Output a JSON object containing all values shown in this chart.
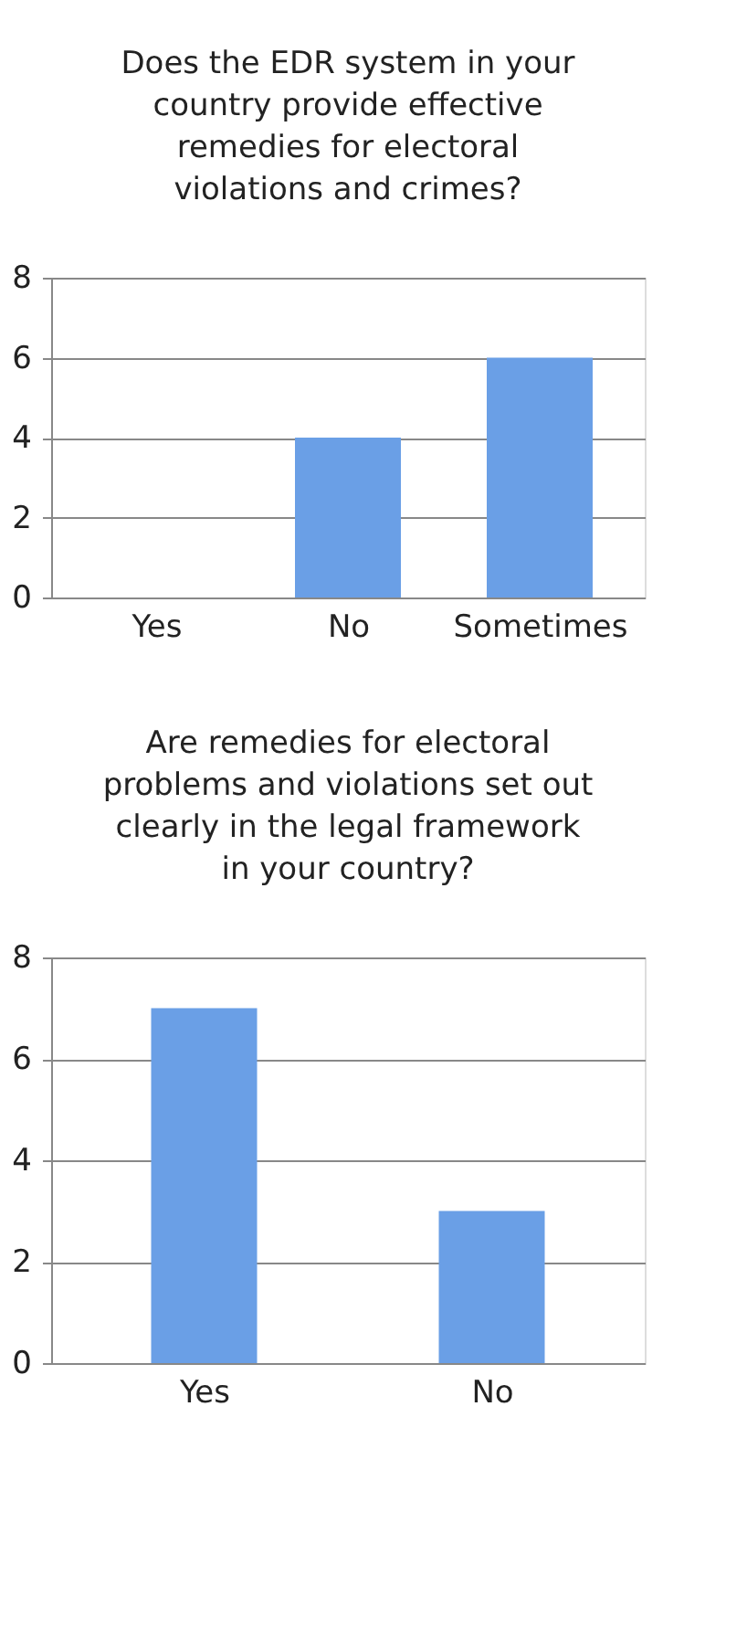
{
  "chart_data": [
    {
      "type": "bar",
      "title": "Does the EDR system in your country provide effective remedies for electoral violations and crimes?",
      "categories": [
        "Yes",
        "No",
        "Sometimes"
      ],
      "values": [
        0,
        4,
        6
      ],
      "color": "#6a9fe6",
      "ylim": [
        0,
        8
      ],
      "yticks": [
        0,
        2,
        4,
        6,
        8
      ],
      "grid": "y"
    },
    {
      "type": "bar",
      "title": "Are remedies for electoral problems and violations set out clearly in the legal framework in your country?",
      "categories": [
        "Yes",
        "No"
      ],
      "values": [
        7,
        3
      ],
      "color": "#6a9fe6",
      "ylim": [
        0,
        8
      ],
      "yticks": [
        0,
        2,
        4,
        6,
        8
      ],
      "grid": "y"
    }
  ]
}
